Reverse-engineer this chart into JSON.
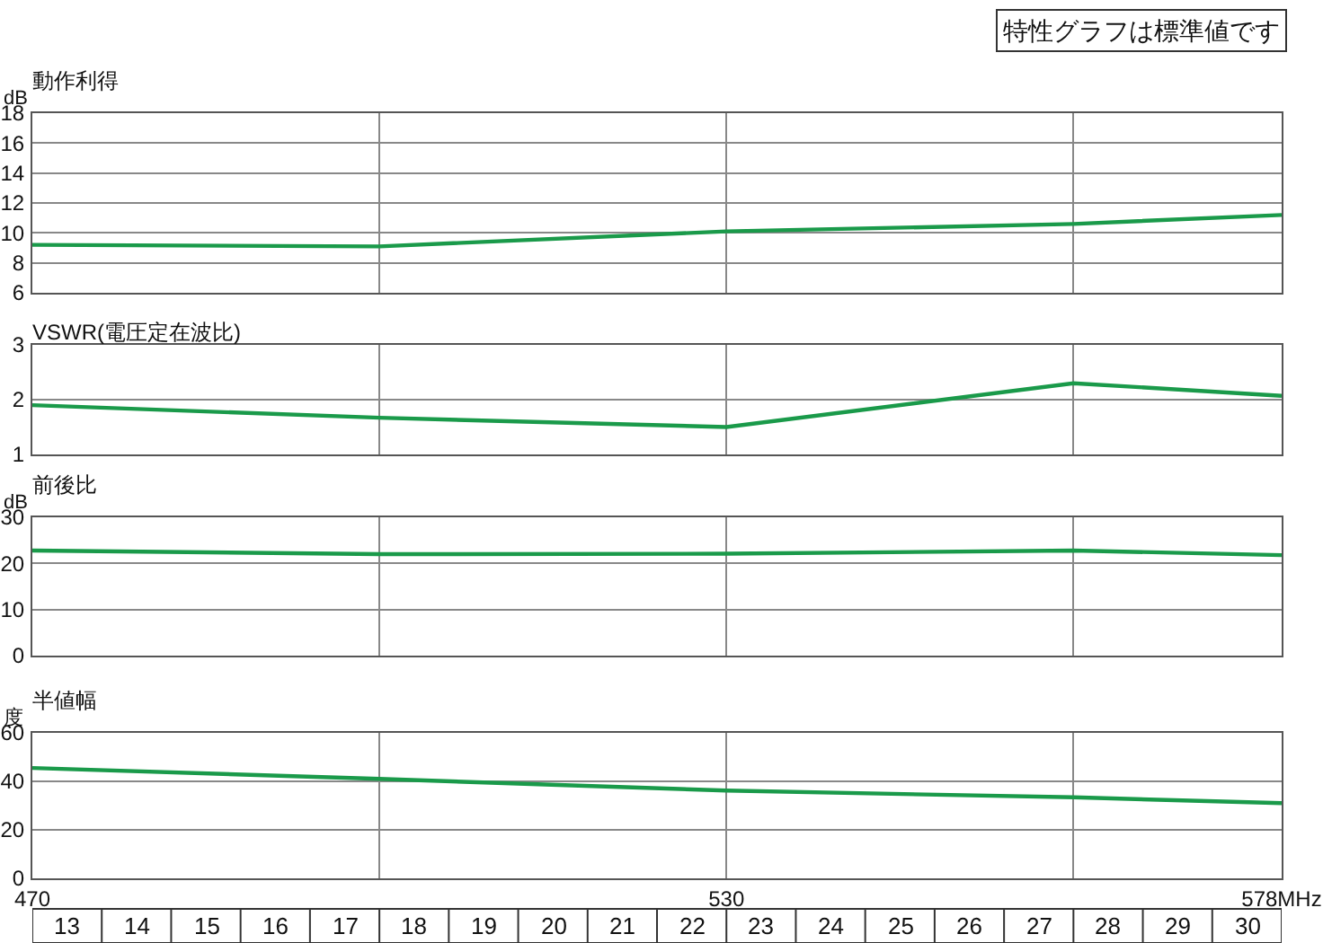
{
  "chart_data": [
    {
      "type": "line",
      "title": "動作利得",
      "ylabel": "dB",
      "annotations": [
        "特性グラフは標準値です"
      ],
      "x": [
        470,
        500,
        530,
        560,
        578
      ],
      "series": [
        {
          "color": "#1a9a4a",
          "values": [
            9.2,
            9.1,
            10.1,
            10.6,
            11.2
          ]
        }
      ],
      "xlim": [
        470,
        578
      ],
      "xticks": [
        {
          "value": 500,
          "label": null
        },
        {
          "value": 530,
          "label": null
        },
        {
          "value": 560,
          "label": null
        }
      ],
      "ylim": [
        6,
        18
      ],
      "yticks": [
        6,
        8,
        10,
        12,
        14,
        16,
        18
      ],
      "grid": true,
      "tick_labels": "y",
      "marker": "none",
      "line_style": "solid"
    },
    {
      "type": "line",
      "title": "VSWR(電圧定在波比)",
      "x": [
        470,
        500,
        530,
        560,
        578
      ],
      "series": [
        {
          "color": "#1a9a4a",
          "values": [
            1.9,
            1.67,
            1.5,
            2.3,
            2.07
          ]
        }
      ],
      "xlim": [
        470,
        578
      ],
      "xticks": [
        {
          "value": 500,
          "label": null
        },
        {
          "value": 530,
          "label": null
        },
        {
          "value": 560,
          "label": null
        }
      ],
      "ylim": [
        1,
        3
      ],
      "yticks": [
        1,
        2,
        3
      ],
      "grid": true,
      "tick_labels": "y",
      "marker": "none",
      "line_style": "solid"
    },
    {
      "type": "line",
      "title": "前後比",
      "ylabel": "dB",
      "x": [
        470,
        500,
        530,
        560,
        578
      ],
      "series": [
        {
          "color": "#1a9a4a",
          "values": [
            22.8,
            22,
            22.1,
            22.8,
            21.8
          ]
        }
      ],
      "xlim": [
        470,
        578
      ],
      "xticks": [
        {
          "value": 500,
          "label": null
        },
        {
          "value": 530,
          "label": null
        },
        {
          "value": 560,
          "label": null
        }
      ],
      "ylim": [
        0,
        30
      ],
      "yticks": [
        0,
        10,
        20,
        30
      ],
      "grid": true,
      "tick_labels": "y",
      "marker": "none",
      "line_style": "solid"
    },
    {
      "type": "line",
      "title": "半値幅",
      "ylabel": "度",
      "x": [
        470,
        500,
        530,
        560,
        578
      ],
      "series": [
        {
          "color": "#1a9a4a",
          "values": [
            45.5,
            41,
            36.2,
            33.4,
            31
          ]
        }
      ],
      "xlim": [
        470,
        578
      ],
      "xticks": [
        470,
        {
          "value": 500,
          "label": null
        },
        530,
        {
          "value": 560,
          "label": null
        },
        {
          "value": 578,
          "label": "578MHz"
        }
      ],
      "ylim": [
        0,
        60
      ],
      "yticks": [
        0,
        20,
        40,
        60
      ],
      "grid": true,
      "marker": "none",
      "line_style": "solid",
      "x2lim": [
        12.5,
        30.5
      ],
      "x2ticks": [
        13,
        14,
        15,
        16,
        17,
        18,
        19,
        20,
        21,
        22,
        23,
        24,
        25,
        26,
        27,
        28,
        29,
        30
      ]
    }
  ]
}
